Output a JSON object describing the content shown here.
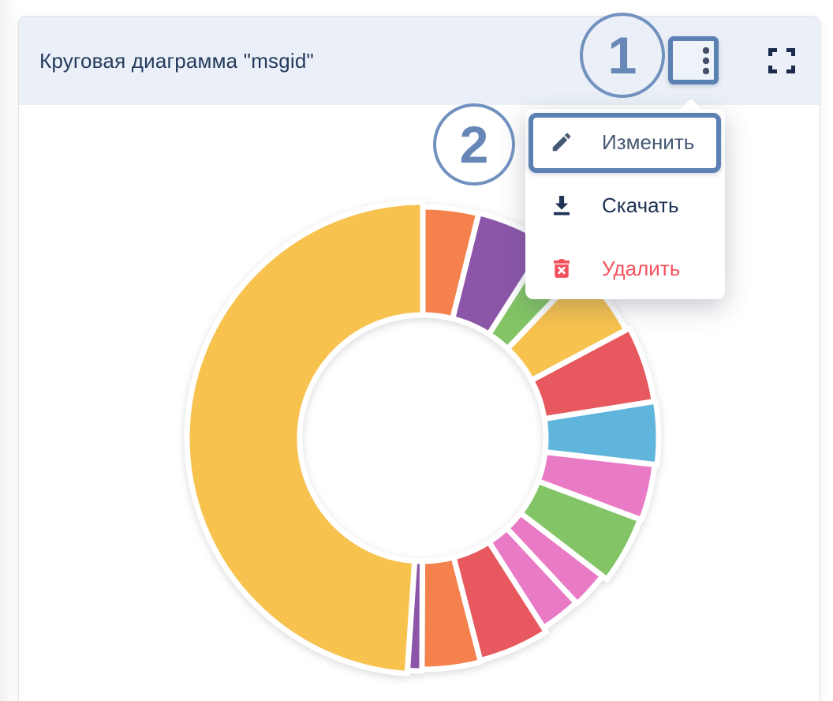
{
  "card": {
    "title": "Круговая диаграмма \"msgid\"",
    "header_bg": "#EBF0F8",
    "title_color": "#233A5C"
  },
  "toolbar": {
    "menu_button_icon": "kebab-vertical",
    "fullscreen_button_icon": "fullscreen-corners"
  },
  "context_menu": {
    "items": [
      {
        "label": "Изменить",
        "icon": "pencil-icon"
      },
      {
        "label": "Скачать",
        "icon": "download-icon"
      },
      {
        "label": "Удалить",
        "icon": "trash-icon",
        "danger": true
      }
    ],
    "text_color": "#1E3355",
    "danger_color": "#F4525C"
  },
  "annotations": {
    "step1_label": "1",
    "step2_label": "2",
    "accent_color": "#5B80B2"
  },
  "chart_data": {
    "type": "pie",
    "title": "Круговая диаграмма \"msgid\"",
    "donut": true,
    "labels_visible": false,
    "legend": "none",
    "center": [
      536,
      555
    ],
    "inner_radius": 156,
    "gap_color": "#FFFFFF",
    "slices": [
      {
        "color_name": "orange",
        "color": "#F5814D",
        "start_deg": 0,
        "end_deg": 14,
        "outer_radius": 293,
        "percent": 3.9
      },
      {
        "color_name": "purple",
        "color": "#8C56A8",
        "start_deg": 14,
        "end_deg": 32.5,
        "outer_radius": 294,
        "percent": 5.1
      },
      {
        "color_name": "green",
        "color": "#83C566",
        "start_deg": 32.5,
        "end_deg": 43.5,
        "outer_radius": 288,
        "percent": 3.1
      },
      {
        "color_name": "yellow",
        "color": "#F7C24E",
        "start_deg": 43.5,
        "end_deg": 62,
        "outer_radius": 292,
        "percent": 5.1
      },
      {
        "color_name": "red",
        "color": "#E7595E",
        "start_deg": 62,
        "end_deg": 81,
        "outer_radius": 297,
        "percent": 5.3
      },
      {
        "color_name": "blue",
        "color": "#5FB5DC",
        "start_deg": 81,
        "end_deg": 96.5,
        "outer_radius": 299,
        "percent": 4.3
      },
      {
        "color_name": "pink",
        "color": "#E97AC6",
        "start_deg": 96.5,
        "end_deg": 110.5,
        "outer_radius": 296,
        "percent": 3.9
      },
      {
        "color_name": "green",
        "color": "#83C566",
        "start_deg": 110.5,
        "end_deg": 127.5,
        "outer_radius": 294,
        "percent": 4.7
      },
      {
        "color_name": "pink",
        "color": "#E97AC6",
        "start_deg": 127.5,
        "end_deg": 137,
        "outer_radius": 287,
        "percent": 2.6
      },
      {
        "color_name": "pink",
        "color": "#E97AC6",
        "start_deg": 137,
        "end_deg": 147.5,
        "outer_radius": 285,
        "percent": 2.9
      },
      {
        "color_name": "red",
        "color": "#E7595E",
        "start_deg": 147.5,
        "end_deg": 165.5,
        "outer_radius": 291,
        "percent": 5.0
      },
      {
        "color_name": "orange",
        "color": "#F5814D",
        "start_deg": 165.5,
        "end_deg": 180.2,
        "outer_radius": 293,
        "percent": 4.1
      },
      {
        "color_name": "purple",
        "color": "#8C56A8",
        "start_deg": 180.2,
        "end_deg": 183.8,
        "outer_radius": 295,
        "percent": 1.0
      },
      {
        "color_name": "yellow",
        "color": "#F7C24E",
        "start_deg": 183.8,
        "end_deg": 360,
        "outer_radius": 299,
        "percent": 48.9
      }
    ]
  }
}
